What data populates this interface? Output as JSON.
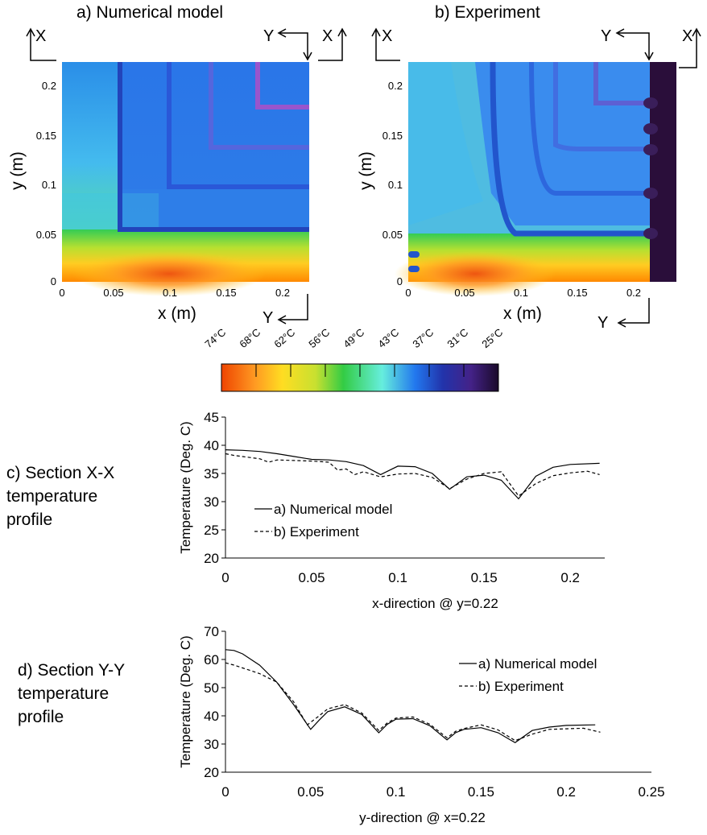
{
  "panel_a": {
    "title": "a) Numerical model",
    "xlabel": "x (m)",
    "ylabel": "y (m)",
    "xticks": [
      "0",
      "0.05",
      "0.1",
      "0.15",
      "0.2"
    ],
    "yticks": [
      "0",
      "0.05",
      "0.1",
      "0.15",
      "0.2"
    ],
    "section_x_label_left": "X",
    "section_x_label_right": "X",
    "section_y_label_top": "Y",
    "section_y_label_bottom": "Y"
  },
  "panel_b": {
    "title": "b) Experiment",
    "xlabel": "x (m)",
    "ylabel": "y (m)",
    "xticks": [
      "0",
      "0.05",
      "0.1",
      "0.15",
      "0.2"
    ],
    "yticks": [
      "0",
      "0.05",
      "0.1",
      "0.15",
      "0.2"
    ],
    "section_x_label_left": "X",
    "section_x_label_right": "X",
    "section_y_label_top": "Y",
    "section_y_label_bottom": "Y"
  },
  "colorbar": {
    "labels": [
      "74°C",
      "68°C",
      "62°C",
      "56°C",
      "49°C",
      "43°C",
      "37°C",
      "31°C",
      "25°C"
    ],
    "colors": [
      "#ee4400",
      "#ffcc22",
      "#d8e830",
      "#33cc44",
      "#66eedd",
      "#2277ee",
      "#2233aa",
      "#220a40"
    ]
  },
  "section_c": {
    "caption": "c) Section X-X\ntemperature\nprofile"
  },
  "section_d": {
    "caption": "d) Section Y-Y\ntemperature\nprofile"
  },
  "chart_data": [
    {
      "type": "line",
      "title": "",
      "xlabel": "x-direction @ y=0.22",
      "ylabel": "Temperature (Deg. C)",
      "xlim": [
        0,
        0.22
      ],
      "ylim": [
        20,
        45
      ],
      "xticks": [
        0,
        0.05,
        0.1,
        0.15,
        0.2
      ],
      "yticks": [
        20,
        25,
        30,
        35,
        40,
        45
      ],
      "legend_position": "center-left",
      "series": [
        {
          "name": "a) Numerical model",
          "style": "solid",
          "x": [
            0,
            0.01,
            0.02,
            0.03,
            0.04,
            0.05,
            0.06,
            0.07,
            0.08,
            0.09,
            0.1,
            0.11,
            0.12,
            0.13,
            0.14,
            0.15,
            0.16,
            0.17,
            0.18,
            0.19,
            0.2,
            0.217
          ],
          "y": [
            39.2,
            39.1,
            38.9,
            38.5,
            38.0,
            37.5,
            37.4,
            37.1,
            36.4,
            34.8,
            36.3,
            36.2,
            35.0,
            32.2,
            34.4,
            34.7,
            33.8,
            30.5,
            34.5,
            36.1,
            36.6,
            36.8
          ]
        },
        {
          "name": "b) Experiment",
          "style": "dashed",
          "x": [
            0,
            0.005,
            0.01,
            0.02,
            0.025,
            0.03,
            0.04,
            0.05,
            0.06,
            0.065,
            0.07,
            0.075,
            0.08,
            0.09,
            0.1,
            0.11,
            0.12,
            0.13,
            0.14,
            0.15,
            0.16,
            0.17,
            0.18,
            0.19,
            0.2,
            0.21,
            0.217
          ],
          "y": [
            38.5,
            38.2,
            38.0,
            37.6,
            37.0,
            37.4,
            37.3,
            37.2,
            37.0,
            35.6,
            35.8,
            34.8,
            35.3,
            34.4,
            34.9,
            35.0,
            34.3,
            32.3,
            34.0,
            35.0,
            35.3,
            31.0,
            33.2,
            34.6,
            35.1,
            35.4,
            34.8
          ]
        }
      ]
    },
    {
      "type": "line",
      "title": "",
      "xlabel": "y-direction @ x=0.22",
      "ylabel": "Temperature (Deg. C)",
      "xlim": [
        0,
        0.25
      ],
      "ylim": [
        20,
        70
      ],
      "xticks": [
        0,
        0.05,
        0.1,
        0.15,
        0.2,
        0.25
      ],
      "yticks": [
        20,
        30,
        40,
        50,
        60,
        70
      ],
      "legend_position": "top-right",
      "series": [
        {
          "name": "a) Numerical model",
          "style": "solid",
          "x": [
            0,
            0.005,
            0.01,
            0.02,
            0.03,
            0.04,
            0.05,
            0.055,
            0.06,
            0.07,
            0.08,
            0.09,
            0.095,
            0.1,
            0.11,
            0.12,
            0.13,
            0.135,
            0.14,
            0.15,
            0.16,
            0.17,
            0.18,
            0.19,
            0.2,
            0.217
          ],
          "y": [
            63.5,
            63.2,
            62.0,
            58.0,
            52.0,
            44.0,
            35.2,
            38.5,
            41.5,
            43.2,
            40.5,
            34.0,
            37.0,
            38.8,
            39.0,
            36.5,
            31.5,
            34.0,
            35.2,
            35.8,
            34.0,
            30.5,
            34.8,
            36.0,
            36.6,
            36.8
          ]
        },
        {
          "name": "b) Experiment",
          "style": "dashed",
          "x": [
            0,
            0.005,
            0.01,
            0.02,
            0.03,
            0.04,
            0.048,
            0.055,
            0.06,
            0.07,
            0.08,
            0.09,
            0.095,
            0.1,
            0.11,
            0.12,
            0.13,
            0.135,
            0.14,
            0.15,
            0.16,
            0.17,
            0.18,
            0.19,
            0.2,
            0.21,
            0.22
          ],
          "y": [
            58.8,
            58.0,
            57.0,
            55.0,
            52.0,
            45.0,
            36.8,
            40.0,
            42.5,
            44.0,
            41.0,
            34.8,
            37.5,
            39.2,
            39.6,
            37.0,
            32.2,
            34.5,
            35.5,
            36.8,
            35.0,
            31.2,
            33.5,
            35.2,
            35.4,
            35.6,
            34.2
          ]
        }
      ]
    }
  ]
}
